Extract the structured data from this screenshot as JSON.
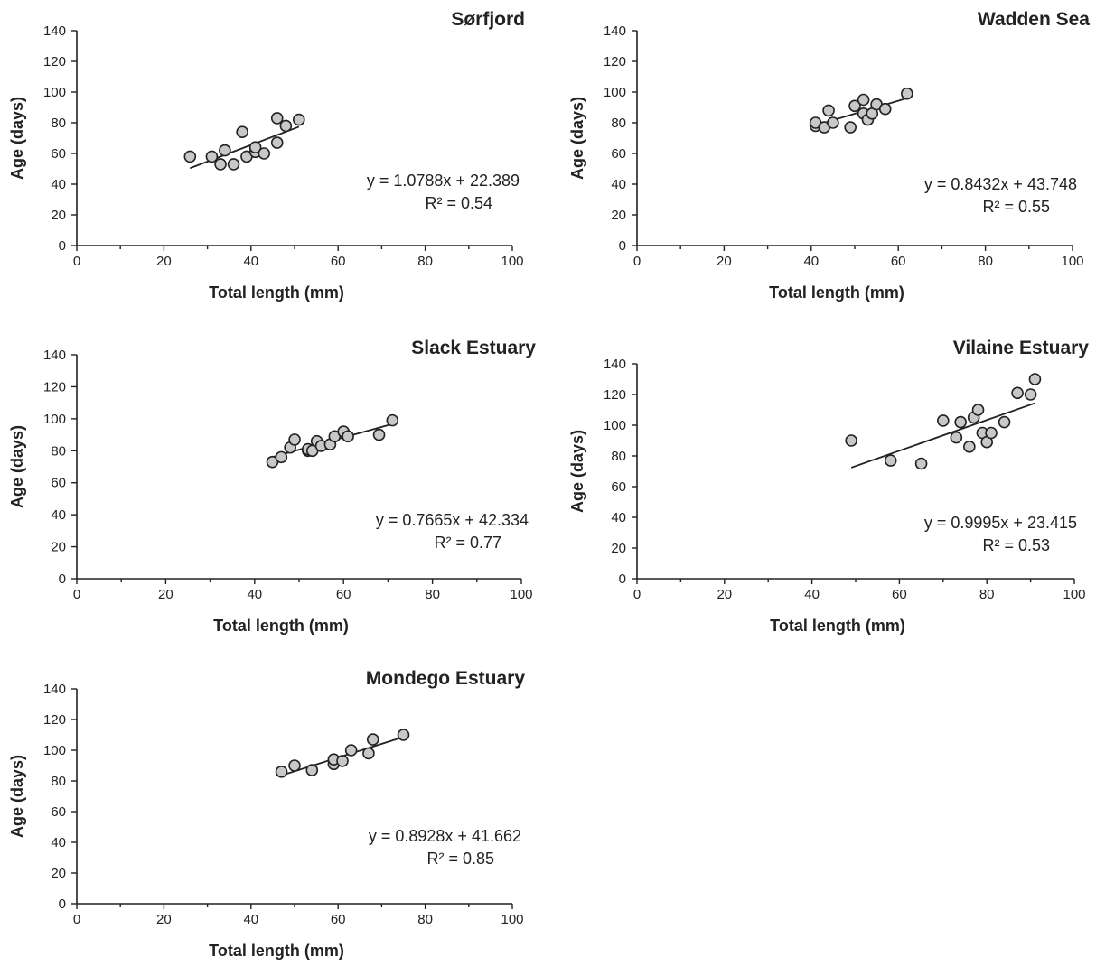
{
  "chart_data": [
    {
      "type": "scatter",
      "title": "Sørfjord",
      "xlabel": "Total length (mm)",
      "ylabel": "Age (days)",
      "xlim": [
        0,
        100
      ],
      "ylim": [
        0,
        140
      ],
      "xticks": [
        "0",
        "20",
        "40",
        "60",
        "80",
        "100"
      ],
      "yticks": [
        "0",
        "20",
        "40",
        "60",
        "80",
        "100",
        "120",
        "140"
      ],
      "grid": false,
      "points": [
        {
          "x": 26,
          "y": 58
        },
        {
          "x": 31,
          "y": 58
        },
        {
          "x": 33,
          "y": 53
        },
        {
          "x": 34,
          "y": 62
        },
        {
          "x": 36,
          "y": 53
        },
        {
          "x": 38,
          "y": 74
        },
        {
          "x": 39,
          "y": 58
        },
        {
          "x": 41,
          "y": 61
        },
        {
          "x": 41,
          "y": 64
        },
        {
          "x": 43,
          "y": 60
        },
        {
          "x": 46,
          "y": 67
        },
        {
          "x": 46,
          "y": 83
        },
        {
          "x": 48,
          "y": 78
        },
        {
          "x": 51,
          "y": 82
        }
      ],
      "trendline": {
        "slope": 1.0788,
        "intercept": 22.389,
        "x_range": [
          26,
          51
        ]
      },
      "equation": "y = 1.0788x + 22.389",
      "r_squared": "R² = 0.54"
    },
    {
      "type": "scatter",
      "title": "Wadden Sea",
      "xlabel": "Total length (mm)",
      "ylabel": "Age (days)",
      "xlim": [
        0,
        100
      ],
      "ylim": [
        0,
        140
      ],
      "xticks": [
        "0",
        "20",
        "40",
        "60",
        "80",
        "100"
      ],
      "yticks": [
        "0",
        "20",
        "40",
        "60",
        "80",
        "100",
        "120",
        "140"
      ],
      "grid": false,
      "points": [
        {
          "x": 41,
          "y": 78
        },
        {
          "x": 41,
          "y": 80
        },
        {
          "x": 43,
          "y": 77
        },
        {
          "x": 44,
          "y": 88
        },
        {
          "x": 45,
          "y": 80
        },
        {
          "x": 49,
          "y": 77
        },
        {
          "x": 50,
          "y": 91
        },
        {
          "x": 52,
          "y": 95
        },
        {
          "x": 52,
          "y": 86
        },
        {
          "x": 53,
          "y": 82
        },
        {
          "x": 54,
          "y": 86
        },
        {
          "x": 55,
          "y": 92
        },
        {
          "x": 57,
          "y": 89
        },
        {
          "x": 62,
          "y": 99
        }
      ],
      "trendline": {
        "slope": 0.8432,
        "intercept": 43.748,
        "x_range": [
          41,
          62
        ]
      },
      "equation": "y = 0.8432x + 43.748",
      "r_squared": "R² = 0.55"
    },
    {
      "type": "scatter",
      "title": "Slack Estuary",
      "xlabel": "Total length (mm)",
      "ylabel": "Age (days)",
      "xlim": [
        0,
        100
      ],
      "ylim": [
        0,
        140
      ],
      "xticks": [
        "0",
        "20",
        "40",
        "60",
        "80",
        "100"
      ],
      "yticks": [
        "0",
        "20",
        "40",
        "60",
        "80",
        "100",
        "120",
        "140"
      ],
      "grid": false,
      "points": [
        {
          "x": 44,
          "y": 73
        },
        {
          "x": 46,
          "y": 76
        },
        {
          "x": 48,
          "y": 82
        },
        {
          "x": 49,
          "y": 87
        },
        {
          "x": 52,
          "y": 80
        },
        {
          "x": 52,
          "y": 81
        },
        {
          "x": 53,
          "y": 80
        },
        {
          "x": 54,
          "y": 86
        },
        {
          "x": 55,
          "y": 83
        },
        {
          "x": 57,
          "y": 84
        },
        {
          "x": 58,
          "y": 89
        },
        {
          "x": 60,
          "y": 92
        },
        {
          "x": 61,
          "y": 89
        },
        {
          "x": 68,
          "y": 90
        },
        {
          "x": 71,
          "y": 99
        }
      ],
      "trendline": {
        "slope": 0.7665,
        "intercept": 42.334,
        "x_range": [
          44,
          71
        ]
      },
      "equation": "y = 0.7665x + 42.334",
      "r_squared": "R² = 0.77"
    },
    {
      "type": "scatter",
      "title": "Vilaine Estuary",
      "xlabel": "Total length (mm)",
      "ylabel": "Age (days)",
      "xlim": [
        0,
        100
      ],
      "ylim": [
        0,
        140
      ],
      "xticks": [
        "0",
        "20",
        "40",
        "60",
        "80",
        "100"
      ],
      "yticks": [
        "0",
        "20",
        "40",
        "60",
        "80",
        "100",
        "120",
        "140"
      ],
      "grid": false,
      "points": [
        {
          "x": 49,
          "y": 90
        },
        {
          "x": 58,
          "y": 77
        },
        {
          "x": 65,
          "y": 75
        },
        {
          "x": 70,
          "y": 103
        },
        {
          "x": 73,
          "y": 92
        },
        {
          "x": 74,
          "y": 102
        },
        {
          "x": 76,
          "y": 86
        },
        {
          "x": 77,
          "y": 105
        },
        {
          "x": 78,
          "y": 110
        },
        {
          "x": 79,
          "y": 95
        },
        {
          "x": 80,
          "y": 89
        },
        {
          "x": 81,
          "y": 95
        },
        {
          "x": 84,
          "y": 102
        },
        {
          "x": 87,
          "y": 121
        },
        {
          "x": 90,
          "y": 120
        },
        {
          "x": 91,
          "y": 130
        }
      ],
      "trendline": {
        "slope": 0.9995,
        "intercept": 23.415,
        "x_range": [
          49,
          91
        ]
      },
      "equation": "y = 0.9995x + 23.415",
      "r_squared": "R² = 0.53"
    },
    {
      "type": "scatter",
      "title": "Mondego Estuary",
      "xlabel": "Total length (mm)",
      "ylabel": "Age (days)",
      "xlim": [
        0,
        100
      ],
      "ylim": [
        0,
        140
      ],
      "xticks": [
        "0",
        "20",
        "40",
        "60",
        "80",
        "100"
      ],
      "yticks": [
        "0",
        "20",
        "40",
        "60",
        "80",
        "100",
        "120",
        "140"
      ],
      "grid": false,
      "points": [
        {
          "x": 47,
          "y": 86
        },
        {
          "x": 50,
          "y": 90
        },
        {
          "x": 54,
          "y": 87
        },
        {
          "x": 59,
          "y": 91
        },
        {
          "x": 59,
          "y": 94
        },
        {
          "x": 61,
          "y": 93
        },
        {
          "x": 63,
          "y": 100
        },
        {
          "x": 67,
          "y": 98
        },
        {
          "x": 68,
          "y": 107
        },
        {
          "x": 75,
          "y": 110
        }
      ],
      "trendline": {
        "slope": 0.8928,
        "intercept": 41.662,
        "x_range": [
          47,
          75
        ]
      },
      "equation": "y = 0.8928x + 41.662",
      "r_squared": "R² = 0.85"
    }
  ]
}
